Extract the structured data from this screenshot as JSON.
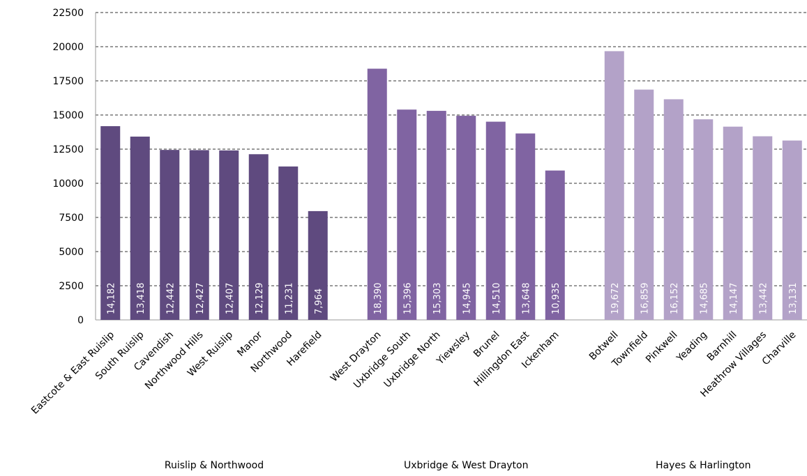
{
  "chart_data": {
    "type": "bar",
    "ylim": [
      0,
      22500
    ],
    "yticks": [
      0,
      2500,
      5000,
      7500,
      10000,
      12500,
      15000,
      17500,
      20000,
      22500
    ],
    "grid": true,
    "groups": [
      {
        "name": "Ruislip & Northwood",
        "color": "#5f4a7f",
        "categories": [
          "Eastcote & East Ruislip",
          "South Ruislip",
          "Cavendish",
          "Northwood Hills",
          "West Ruislip",
          "Manor",
          "Northwood",
          "Harefield"
        ],
        "values": [
          14182,
          13418,
          12442,
          12427,
          12407,
          12129,
          11231,
          7964
        ],
        "value_labels": [
          "14,182",
          "13,418",
          "12,442",
          "12,427",
          "12,407",
          "12,129",
          "11,231",
          "7,964"
        ]
      },
      {
        "name": "Uxbridge & West Drayton",
        "color": "#8064a2",
        "categories": [
          "West Drayton",
          "Uxbridge South",
          "Uxbridge North",
          "Yiewsley",
          "Brunel",
          "Hillingdon East",
          "Ickenham"
        ],
        "values": [
          18390,
          15396,
          15303,
          14945,
          14510,
          13648,
          10935
        ],
        "value_labels": [
          "18,390",
          "15,396",
          "15,303",
          "14,945",
          "14,510",
          "13,648",
          "10,935"
        ]
      },
      {
        "name": "Hayes & Harlington",
        "color": "#b3a2c8",
        "categories": [
          "Botwell",
          "Townfield",
          "Pinkwell",
          "Yeading",
          "Barnhill",
          "Heathrow Villages",
          "Charville"
        ],
        "values": [
          19672,
          16859,
          16152,
          14685,
          14147,
          13442,
          13131
        ],
        "value_labels": [
          "19,672",
          "16,859",
          "16,152",
          "14,685",
          "14,147",
          "13,442",
          "13,131"
        ]
      }
    ]
  }
}
